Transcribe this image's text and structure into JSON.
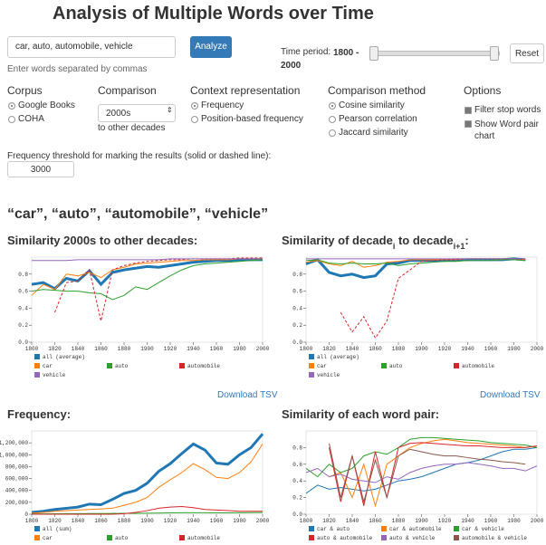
{
  "header": {
    "title": "Analysis of Multiple Words over Time"
  },
  "search": {
    "input": "car, auto, automobile, vehicle",
    "button": "Analyze",
    "hint": "Enter words separated by commas"
  },
  "time_period": {
    "label": "Time period:",
    "range": "1800 - 2000",
    "reset": "Reset"
  },
  "controls": [
    {
      "heading": "Corpus",
      "options": [
        "Google Books",
        "COHA"
      ],
      "selected": 0
    },
    {
      "heading": "Comparison",
      "select": "2000s",
      "note": "to other decades"
    },
    {
      "heading": "Context representation",
      "options": [
        "Frequency",
        "Position-based frequency"
      ],
      "selected": 0
    },
    {
      "heading": "Comparison method",
      "options": [
        "Cosine similarity",
        "Pearson correlation",
        "Jaccard similarity"
      ],
      "selected": 0
    },
    {
      "heading": "Options",
      "checkboxes": [
        "Filter stop words",
        "Show Word pair chart"
      ]
    }
  ],
  "threshold": {
    "label": "Frequency threshold for marking the results (solid or dashed line):",
    "value": 3000
  },
  "results_heading": "“car”, “auto”, “automobile”, “vehicle”",
  "download": [
    "Download TSV",
    "Download TSV"
  ],
  "chart_data": [
    {
      "type": "line",
      "title": "Similarity 2000s to other decades:",
      "x": [
        1800,
        1810,
        1820,
        1830,
        1840,
        1850,
        1860,
        1870,
        1880,
        1890,
        1900,
        1910,
        1920,
        1930,
        1940,
        1950,
        1960,
        1970,
        1980,
        1990,
        2000
      ],
      "xlim": [
        1800,
        2000
      ],
      "xticks": [
        1800,
        1820,
        1840,
        1860,
        1880,
        1900,
        1920,
        1940,
        1960,
        1980,
        2000
      ],
      "ylim": [
        0,
        1
      ],
      "yticks": [
        {
          "value": 0,
          "label": "0.0"
        },
        0.2,
        0.4,
        0.6,
        0.8
      ],
      "series": [
        {
          "name": "all (average)",
          "color": "#1f77b4",
          "line_width": 3,
          "values": [
            0.68,
            0.7,
            0.63,
            0.75,
            0.72,
            0.84,
            0.68,
            0.82,
            0.85,
            0.87,
            0.89,
            0.88,
            0.9,
            0.92,
            0.94,
            0.95,
            0.96,
            0.96,
            0.97,
            0.97,
            0.97
          ]
        },
        {
          "name": "car",
          "color": "#ff7f0e",
          "values": [
            0.55,
            0.68,
            0.62,
            0.8,
            0.78,
            0.82,
            0.76,
            0.85,
            0.88,
            0.92,
            0.93,
            0.94,
            0.95,
            0.96,
            0.96,
            0.97,
            0.97,
            0.97,
            0.98,
            0.98,
            0.98
          ]
        },
        {
          "name": "auto",
          "color": "#2ca02c",
          "values": [
            0.6,
            0.62,
            0.61,
            0.6,
            0.6,
            0.58,
            0.57,
            0.5,
            0.55,
            0.65,
            0.62,
            0.7,
            0.78,
            0.85,
            0.9,
            0.92,
            0.93,
            0.94,
            0.95,
            0.96,
            0.97
          ]
        },
        {
          "name": "automobile",
          "color": "#d62728",
          "dash": true,
          "values": [
            null,
            null,
            0.35,
            0.7,
            0.72,
            0.85,
            0.25,
            0.85,
            0.9,
            0.93,
            0.95,
            0.96,
            0.97,
            0.97,
            0.98,
            0.98,
            0.98,
            0.98,
            0.99,
            0.99,
            0.99
          ]
        },
        {
          "name": "vehicle",
          "color": "#9467bd",
          "values": [
            0.96,
            0.96,
            0.96,
            0.96,
            0.97,
            0.97,
            0.97,
            0.97,
            0.97,
            0.97,
            0.97,
            0.97,
            0.98,
            0.98,
            0.98,
            0.98,
            0.98,
            0.98,
            0.98,
            0.98,
            0.98
          ]
        }
      ]
    },
    {
      "type": "line",
      "title": [
        "Similarity of decade",
        "i",
        " to decade",
        "i+1",
        ":"
      ],
      "x": [
        1800,
        1810,
        1820,
        1830,
        1840,
        1850,
        1860,
        1870,
        1880,
        1890,
        1900,
        1910,
        1920,
        1930,
        1940,
        1950,
        1960,
        1970,
        1980,
        1990
      ],
      "xlim": [
        1800,
        2000
      ],
      "xticks": [
        1800,
        1820,
        1840,
        1860,
        1880,
        1900,
        1920,
        1940,
        1960,
        1980,
        2000
      ],
      "ylim": [
        0,
        1
      ],
      "yticks": [
        {
          "value": 0,
          "label": "0.0"
        },
        0.2,
        0.4,
        0.6,
        0.8
      ],
      "series": [
        {
          "name": "all (average)",
          "color": "#1f77b4",
          "line_width": 3,
          "values": [
            0.92,
            0.97,
            0.82,
            0.78,
            0.8,
            0.76,
            0.78,
            0.92,
            0.93,
            0.96,
            0.96,
            0.96,
            0.96,
            0.97,
            0.97,
            0.97,
            0.97,
            0.97,
            0.98,
            0.97
          ]
        },
        {
          "name": "car",
          "color": "#ff7f0e",
          "values": [
            0.94,
            0.96,
            0.92,
            0.9,
            0.95,
            0.88,
            0.9,
            0.94,
            0.95,
            0.97,
            0.97,
            0.97,
            0.97,
            0.97,
            0.98,
            0.98,
            0.98,
            0.98,
            0.98,
            0.97
          ]
        },
        {
          "name": "auto",
          "color": "#2ca02c",
          "values": [
            0.96,
            0.97,
            0.93,
            0.92,
            0.93,
            0.92,
            0.92,
            0.93,
            0.9,
            0.92,
            0.93,
            0.94,
            0.95,
            0.95,
            0.96,
            0.96,
            0.96,
            0.97,
            0.97,
            0.96
          ]
        },
        {
          "name": "automobile",
          "color": "#d62728",
          "dash": true,
          "values": [
            null,
            null,
            null,
            0.35,
            0.12,
            0.3,
            0.05,
            0.25,
            0.75,
            0.85,
            0.95,
            0.96,
            0.97,
            0.97,
            0.98,
            0.98,
            0.98,
            0.98,
            0.98,
            0.97
          ]
        },
        {
          "name": "vehicle",
          "color": "#9467bd",
          "values": [
            0.98,
            0.98,
            0.98,
            0.98,
            0.98,
            0.98,
            0.98,
            0.98,
            0.98,
            0.98,
            0.98,
            0.98,
            0.98,
            0.98,
            0.98,
            0.98,
            0.98,
            0.98,
            0.98,
            0.98
          ]
        }
      ]
    },
    {
      "type": "line",
      "title": "Frequency:",
      "x": [
        1800,
        1810,
        1820,
        1830,
        1840,
        1850,
        1860,
        1870,
        1880,
        1890,
        1900,
        1910,
        1920,
        1930,
        1940,
        1950,
        1960,
        1970,
        1980,
        1990,
        2000
      ],
      "xlim": [
        1800,
        2000
      ],
      "xticks": [
        1800,
        1820,
        1840,
        1860,
        1880,
        1900,
        1920,
        1940,
        1960,
        1980,
        2000
      ],
      "ylim": [
        0,
        1400000
      ],
      "yticks": [
        0,
        {
          "value": 200000,
          "label": "200,000"
        },
        {
          "value": 400000,
          "label": "400,000"
        },
        {
          "value": 600000,
          "label": "600,000"
        },
        {
          "value": 800000,
          "label": "800,000"
        },
        {
          "value": 1000000,
          "label": "1,000,000"
        },
        {
          "value": 1200000,
          "label": "1,200,000"
        }
      ],
      "series": [
        {
          "name": "all (sum)",
          "color": "#1f77b4",
          "line_width": 3,
          "values": [
            30000,
            50000,
            80000,
            100000,
            120000,
            170000,
            160000,
            250000,
            350000,
            400000,
            520000,
            720000,
            850000,
            1020000,
            1180000,
            1080000,
            860000,
            840000,
            1000000,
            1120000,
            1350000
          ]
        },
        {
          "name": "car",
          "color": "#ff7f0e",
          "values": [
            20000,
            30000,
            50000,
            60000,
            70000,
            80000,
            90000,
            100000,
            150000,
            200000,
            280000,
            450000,
            580000,
            700000,
            850000,
            750000,
            620000,
            600000,
            700000,
            880000,
            1180000
          ]
        },
        {
          "name": "auto",
          "color": "#2ca02c",
          "values": [
            5000,
            6000,
            8000,
            9000,
            10000,
            12000,
            12000,
            14000,
            15000,
            16000,
            18000,
            20000,
            22000,
            24000,
            25000,
            24000,
            22000,
            22000,
            24000,
            26000,
            28000
          ]
        },
        {
          "name": "automobile",
          "color": "#d62728",
          "values": [
            0,
            0,
            0,
            0,
            0,
            0,
            0,
            0,
            10000,
            30000,
            60000,
            100000,
            120000,
            130000,
            110000,
            80000,
            70000,
            60000,
            50000,
            50000,
            50000
          ]
        }
      ]
    },
    {
      "type": "line",
      "title": "Similarity of each word pair:",
      "x": [
        1800,
        1810,
        1820,
        1830,
        1840,
        1850,
        1860,
        1870,
        1880,
        1890,
        1900,
        1910,
        1920,
        1930,
        1940,
        1950,
        1960,
        1970,
        1980,
        1990,
        2000
      ],
      "xlim": [
        1800,
        2000
      ],
      "xticks": [
        1800,
        1820,
        1840,
        1860,
        1880,
        1900,
        1920,
        1940,
        1960,
        1980,
        2000
      ],
      "ylim": [
        0,
        1
      ],
      "yticks": [
        {
          "value": 0,
          "label": "0.0"
        },
        0.2,
        0.4,
        0.6,
        0.8
      ],
      "series": [
        {
          "name": "car & auto",
          "color": "#1f77b4",
          "values": [
            0.25,
            0.35,
            0.3,
            0.32,
            0.3,
            0.28,
            0.3,
            0.35,
            0.4,
            0.42,
            0.45,
            0.5,
            0.55,
            0.6,
            0.62,
            0.65,
            0.7,
            0.75,
            0.78,
            0.78,
            0.8
          ]
        },
        {
          "name": "car & automobile",
          "color": "#ff7f0e",
          "values": [
            null,
            null,
            0.45,
            0.5,
            0.2,
            0.6,
            0.1,
            0.6,
            0.7,
            0.8,
            0.85,
            0.88,
            0.9,
            0.88,
            0.86,
            0.85,
            0.84,
            0.83,
            0.82,
            0.8,
            0.82
          ]
        },
        {
          "name": "car & vehicle",
          "color": "#2ca02c",
          "values": [
            0.55,
            0.45,
            0.6,
            0.5,
            0.55,
            0.7,
            0.75,
            0.72,
            0.8,
            0.9,
            0.92,
            0.92,
            0.91,
            0.9,
            0.89,
            0.88,
            0.86,
            0.85,
            0.84,
            0.83,
            0.8
          ]
        },
        {
          "name": "auto & automobile",
          "color": "#d62728",
          "values": [
            null,
            null,
            0.8,
            0.15,
            0.7,
            0.1,
            0.75,
            0.2,
            0.8,
            0.85,
            0.86,
            0.85,
            0.84,
            0.83,
            0.82,
            0.82,
            0.81,
            0.8,
            0.8,
            0.8,
            0.82
          ]
        },
        {
          "name": "auto & vehicle",
          "color": "#9467bd",
          "values": [
            0.5,
            0.55,
            0.45,
            0.48,
            0.42,
            0.4,
            0.38,
            0.45,
            0.42,
            0.5,
            0.55,
            0.58,
            0.6,
            0.6,
            0.62,
            0.6,
            0.58,
            0.55,
            0.55,
            0.52,
            0.58
          ]
        },
        {
          "name": "automobile & vehicle",
          "color": "#8c564b",
          "values": [
            null,
            null,
            0.85,
            0.2,
            0.7,
            0.15,
            0.65,
            0.2,
            0.7,
            0.78,
            0.75,
            0.72,
            0.7,
            0.7,
            0.68,
            0.66,
            0.65,
            0.63,
            0.62,
            0.6,
            null
          ]
        }
      ]
    }
  ]
}
